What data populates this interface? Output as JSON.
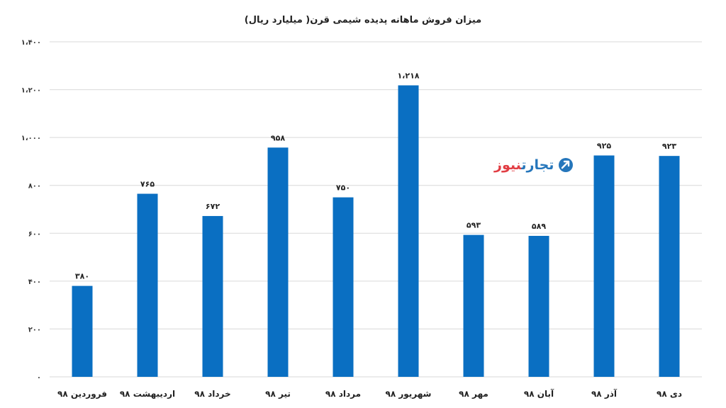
{
  "colors": {
    "bar": "#0a6fc2",
    "grid": "#d9d9d9",
    "wm_red": "#e0343a",
    "wm_blue": "#1a6fb8"
  },
  "watermark": {
    "word_red": "نیوز",
    "word_blue": "تجارت",
    "icon": "arrow-circle-logo-icon"
  },
  "chart_data": {
    "type": "bar",
    "title": "میزان فروش ماهانه پدیده شیمی قرن( میلیارد ریال)",
    "xlabel": "",
    "ylabel": "",
    "ylim": [
      0,
      1400
    ],
    "yticks": [
      0,
      200,
      400,
      600,
      800,
      1000,
      1200,
      1400
    ],
    "ytick_labels": [
      "۰",
      "۲۰۰",
      "۴۰۰",
      "۶۰۰",
      "۸۰۰",
      "۱،۰۰۰",
      "۱،۲۰۰",
      "۱،۴۰۰"
    ],
    "grid": true,
    "legend": "none",
    "categories": [
      "فروردین ۹۸",
      "اردیبهشت ۹۸",
      "خرداد ۹۸",
      "تیر ۹۸",
      "مرداد ۹۸",
      "شهریور ۹۸",
      "مهر ۹۸",
      "آبان ۹۸",
      "آذر ۹۸",
      "دی ۹۸"
    ],
    "values": [
      380,
      765,
      672,
      958,
      750,
      1218,
      593,
      589,
      925,
      923
    ],
    "value_labels": [
      "۳۸۰",
      "۷۶۵",
      "۶۷۲",
      "۹۵۸",
      "۷۵۰",
      "۱،۲۱۸",
      "۵۹۳",
      "۵۸۹",
      "۹۲۵",
      "۹۲۳"
    ]
  }
}
